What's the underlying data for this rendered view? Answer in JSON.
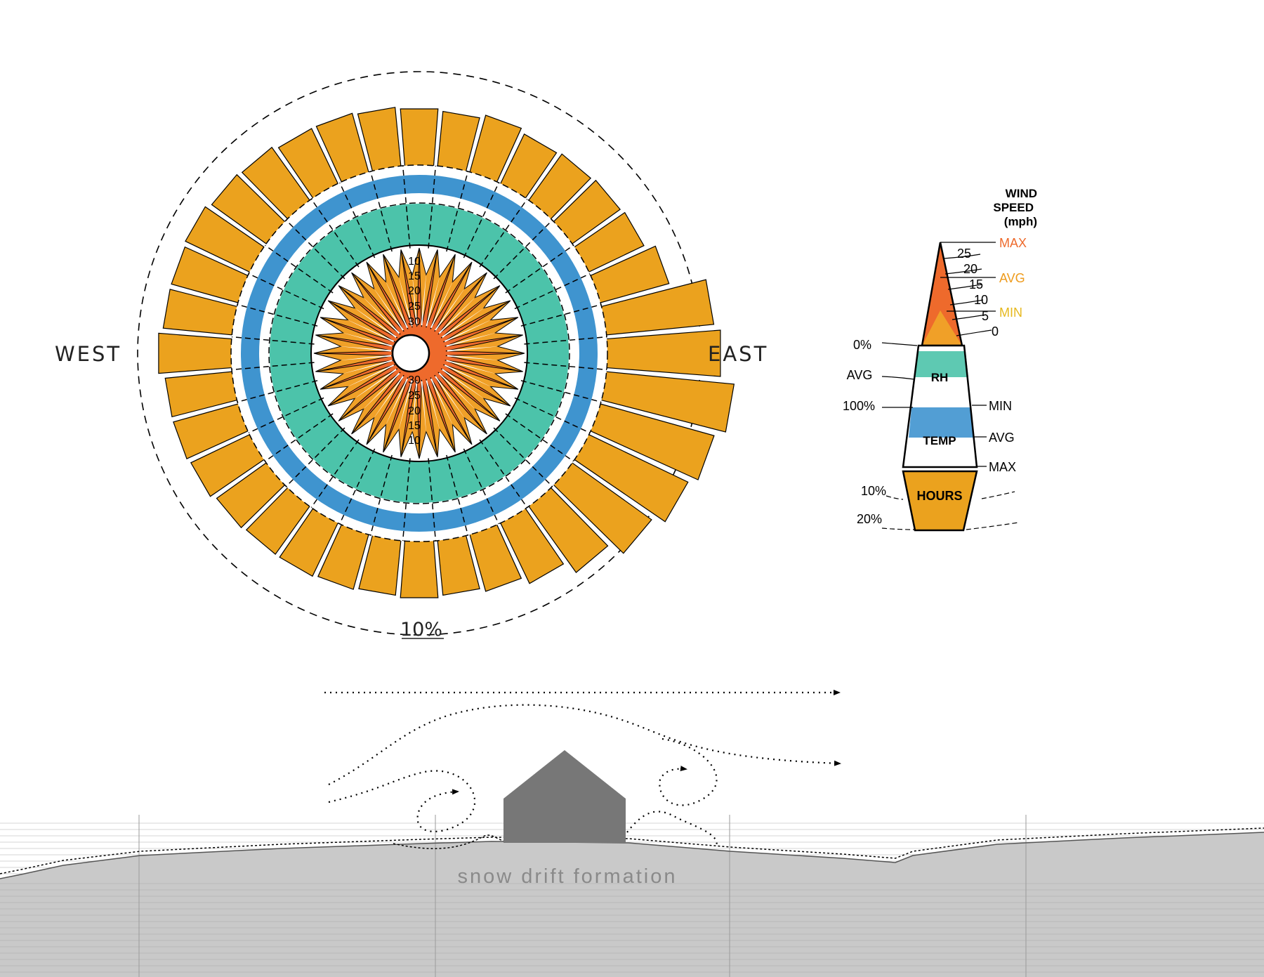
{
  "rose": {
    "label_west": "WEST",
    "label_east": "EAST",
    "outer_ring_label": "10%",
    "speed_ticks_north": [
      "30",
      "25",
      "20",
      "15",
      "10"
    ],
    "speed_ticks_south": [
      "30",
      "25",
      "20",
      "15",
      "10"
    ],
    "sector_count": 36,
    "hours_percent": [
      6.0,
      5.8,
      6.2,
      5.8,
      6.0,
      6.2,
      6.4,
      7.4,
      11.0,
      11.6,
      13.0,
      12.0,
      11.2,
      10.0,
      8.4,
      7.0,
      6.2,
      5.8,
      6.0,
      5.8,
      6.0,
      6.2,
      6.2,
      6.4,
      6.8,
      7.0,
      7.0,
      7.6,
      7.2,
      7.2,
      7.4,
      7.0,
      6.8,
      6.4,
      6.4,
      6.2
    ],
    "colors": {
      "hours": "#EBA21E",
      "wind_max": "#EE6A2C",
      "wind_avg": "#F0A028",
      "rh": "#4CC3AA",
      "temp": "#3F94CF"
    }
  },
  "legend": {
    "title_line1": "WIND",
    "title_line2": "SPEED",
    "title_line3": "(mph)",
    "speed_max": "MAX",
    "speed_avg": "AVG",
    "speed_min": "MIN",
    "speed_ticks": [
      "25",
      "20",
      "15",
      "10",
      "5",
      "0"
    ],
    "rh_label": "RH",
    "rh_0": "0%",
    "rh_avg": "AVG",
    "rh_100": "100%",
    "temp_label": "TEMP",
    "temp_min": "MIN",
    "temp_avg": "AVG",
    "temp_max": "MAX",
    "hours_label": "HOURS",
    "hours_10": "10%",
    "hours_20": "20%"
  },
  "section": {
    "caption": "snow drift formation"
  }
}
